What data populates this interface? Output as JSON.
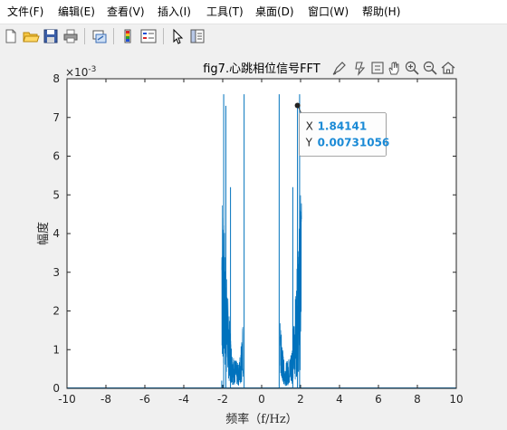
{
  "menubar": {
    "items": [
      "文件(F)",
      "编辑(E)",
      "查看(V)",
      "插入(I)",
      "工具(T)",
      "桌面(D)",
      "窗口(W)",
      "帮助(H)"
    ]
  },
  "toolbar": {
    "buttons": [
      "new-file-icon",
      "open-folder-icon",
      "save-icon",
      "print-icon",
      "link-figure-icon",
      "colorbar-icon",
      "legend-icon",
      "pointer-icon",
      "property-inspector-icon"
    ]
  },
  "axes_toolbar": {
    "buttons": [
      "brush-icon",
      "data-tips-icon",
      "restore-view-icon",
      "pan-icon",
      "zoom-in-icon",
      "zoom-out-icon",
      "home-icon"
    ]
  },
  "colors": {
    "line": "#0072bd",
    "datatip_value": "#1a8ad6"
  },
  "chart_data": {
    "type": "line",
    "title": "fig7.心跳相位信号FFT",
    "xlabel": "频率（f/Hz）",
    "ylabel": "幅度",
    "xlim": [
      -10,
      10
    ],
    "ylim": [
      0,
      0.008
    ],
    "y_exponent_label": "×10",
    "y_exponent": "-3",
    "xticks": [
      "-10",
      "-8",
      "-6",
      "-4",
      "-2",
      "0",
      "2",
      "4",
      "6",
      "8",
      "10"
    ],
    "yticks": [
      "0",
      "1",
      "2",
      "3",
      "4",
      "5",
      "6",
      "7",
      "8"
    ],
    "bands": [
      {
        "x_start": -2.05,
        "x_end": -0.95
      },
      {
        "x_start": 0.95,
        "x_end": 2.05
      }
    ],
    "peaks": [
      {
        "x": -2.05,
        "y": 0.0002
      },
      {
        "x": -1.95,
        "y": 0.0076
      },
      {
        "x": -1.84,
        "y": 0.0073
      },
      {
        "x": -1.6,
        "y": 0.0052
      },
      {
        "x": -0.9,
        "y": 0.0076
      },
      {
        "x": 0.9,
        "y": 0.0076
      },
      {
        "x": 1.6,
        "y": 0.0052
      },
      {
        "x": 1.84141,
        "y": 0.00731056
      },
      {
        "x": 1.95,
        "y": 0.0076
      }
    ],
    "datatip": {
      "x_label": "X",
      "x_value": "1.84141",
      "y_label": "Y",
      "y_value": "0.00731056",
      "x": 1.84141,
      "y": 0.00731056
    }
  }
}
